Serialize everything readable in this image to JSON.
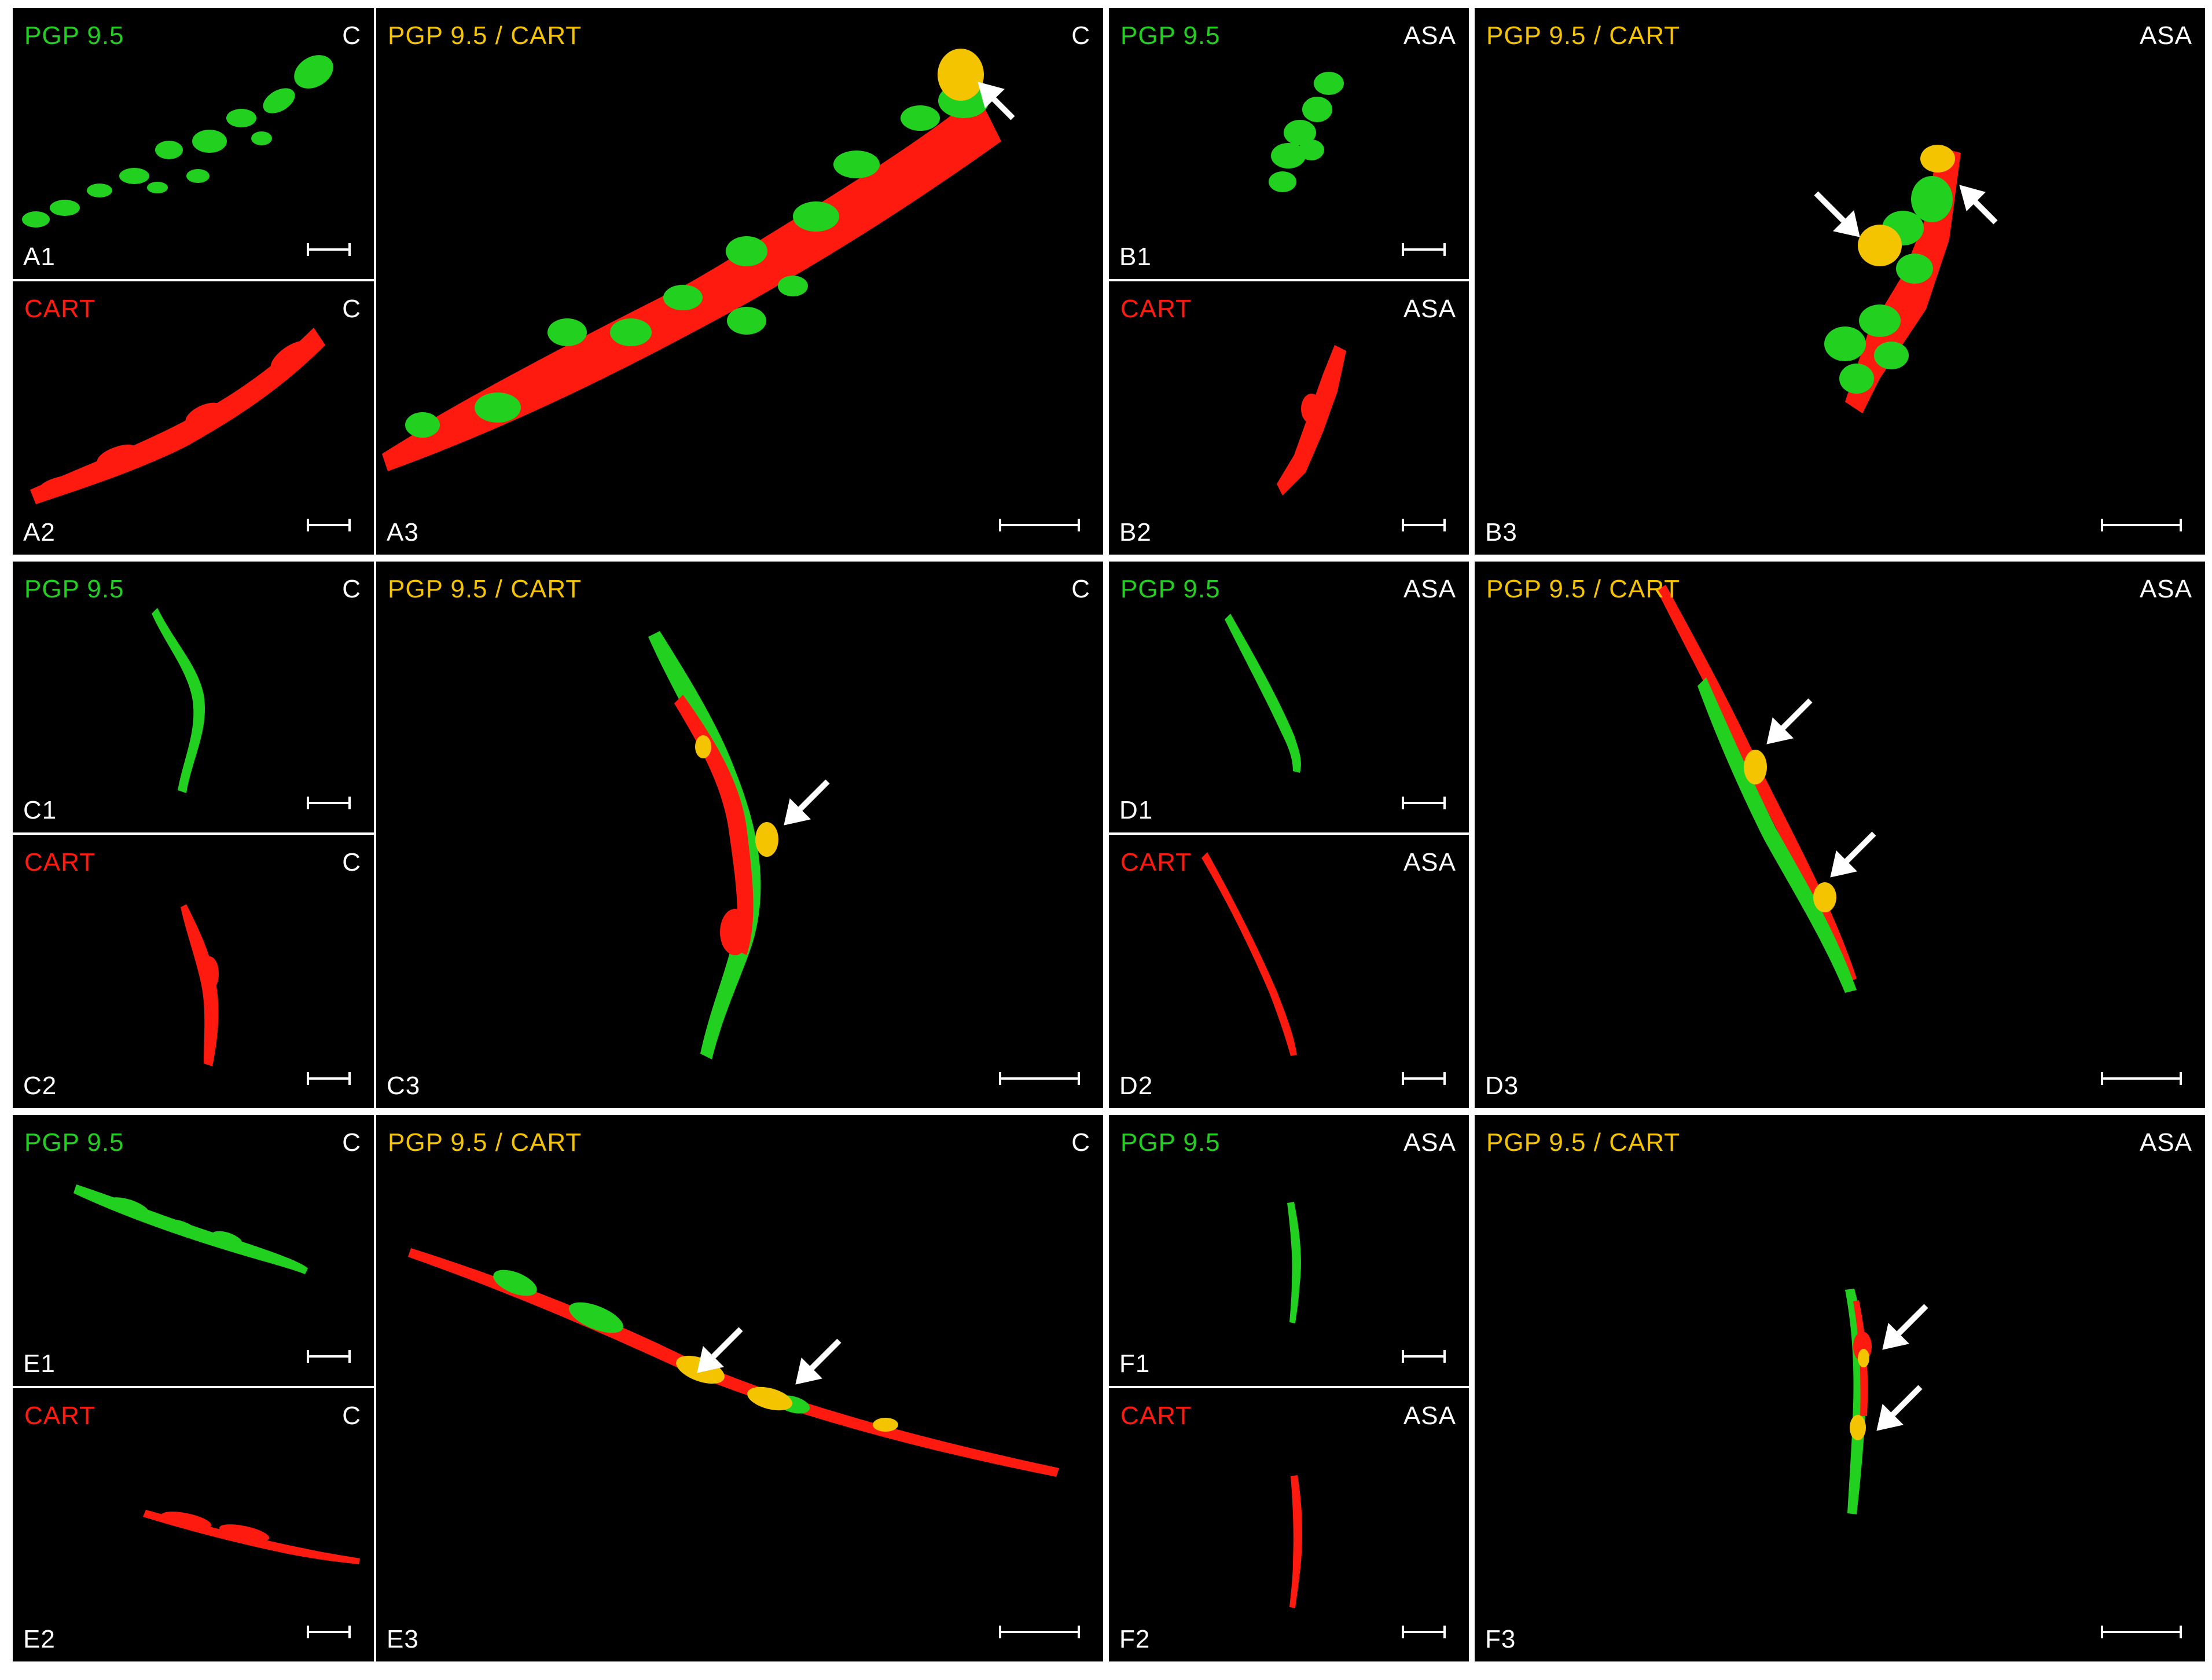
{
  "colors": {
    "pgp": "#22d11f",
    "cart": "#ff1a10",
    "merge": "#f5c400",
    "background": "#000000",
    "text": "#ffffff"
  },
  "panels": {
    "A1": {
      "marker": "PGP 9.5",
      "group": "C",
      "id": "A1"
    },
    "A2": {
      "marker": "CART",
      "group": "C",
      "id": "A2"
    },
    "A3": {
      "marker": "PGP 9.5 / CART",
      "group": "C",
      "id": "A3"
    },
    "B1": {
      "marker": "PGP 9.5",
      "group": "ASA",
      "id": "B1"
    },
    "B2": {
      "marker": "CART",
      "group": "ASA",
      "id": "B2"
    },
    "B3": {
      "marker": "PGP 9.5 / CART",
      "group": "ASA",
      "id": "B3"
    },
    "C1": {
      "marker": "PGP 9.5",
      "group": "C",
      "id": "C1"
    },
    "C2": {
      "marker": "CART",
      "group": "C",
      "id": "C2"
    },
    "C3": {
      "marker": "PGP 9.5 / CART",
      "group": "C",
      "id": "C3"
    },
    "D1": {
      "marker": "PGP 9.5",
      "group": "ASA",
      "id": "D1"
    },
    "D2": {
      "marker": "CART",
      "group": "ASA",
      "id": "D2"
    },
    "D3": {
      "marker": "PGP 9.5 / CART",
      "group": "ASA",
      "id": "D3"
    },
    "E1": {
      "marker": "PGP 9.5",
      "group": "C",
      "id": "E1"
    },
    "E2": {
      "marker": "CART",
      "group": "C",
      "id": "E2"
    },
    "E3": {
      "marker": "PGP 9.5 / CART",
      "group": "C",
      "id": "E3"
    },
    "F1": {
      "marker": "PGP 9.5",
      "group": "ASA",
      "id": "F1"
    },
    "F2": {
      "marker": "CART",
      "group": "ASA",
      "id": "F2"
    },
    "F3": {
      "marker": "PGP 9.5 / CART",
      "group": "ASA",
      "id": "F3"
    }
  },
  "icons": {
    "arrow": "white-arrow-icon",
    "scale": "scale-bar"
  }
}
